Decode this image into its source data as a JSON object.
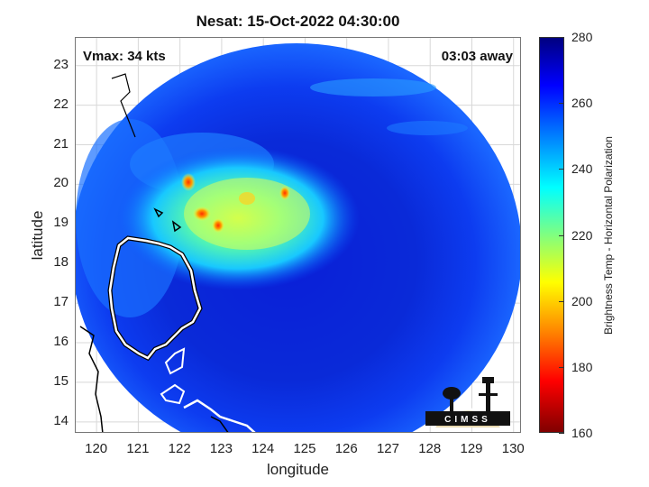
{
  "title": "Nesat: 15-Oct-2022 04:30:00",
  "annotations": {
    "vmax": "Vmax: 34 kts",
    "time_away": "03:03 away"
  },
  "axes": {
    "xlabel": "longitude",
    "ylabel": "latitude",
    "xticks": [
      "120",
      "121",
      "122",
      "123",
      "124",
      "125",
      "126",
      "127",
      "128",
      "129",
      "130"
    ],
    "yticks": [
      "14",
      "15",
      "16",
      "17",
      "18",
      "19",
      "20",
      "21",
      "22",
      "23"
    ]
  },
  "colorbar": {
    "label": "Brightness Temp - Horizontal Polarization",
    "ticks": [
      "280",
      "260",
      "240",
      "220",
      "200",
      "180",
      "160"
    ],
    "range": [
      160,
      280
    ]
  },
  "logo": {
    "text": "CIMSS"
  },
  "chart_data": {
    "type": "heatmap",
    "title": "Nesat: 15-Oct-2022 04:30:00",
    "xlabel": "longitude",
    "ylabel": "latitude",
    "xlim": [
      119.5,
      130.2
    ],
    "ylim": [
      13.7,
      23.7
    ],
    "colorbar_label": "Brightness Temp - Horizontal Polarization",
    "colorbar_range": [
      160,
      280
    ],
    "grid": true
  }
}
